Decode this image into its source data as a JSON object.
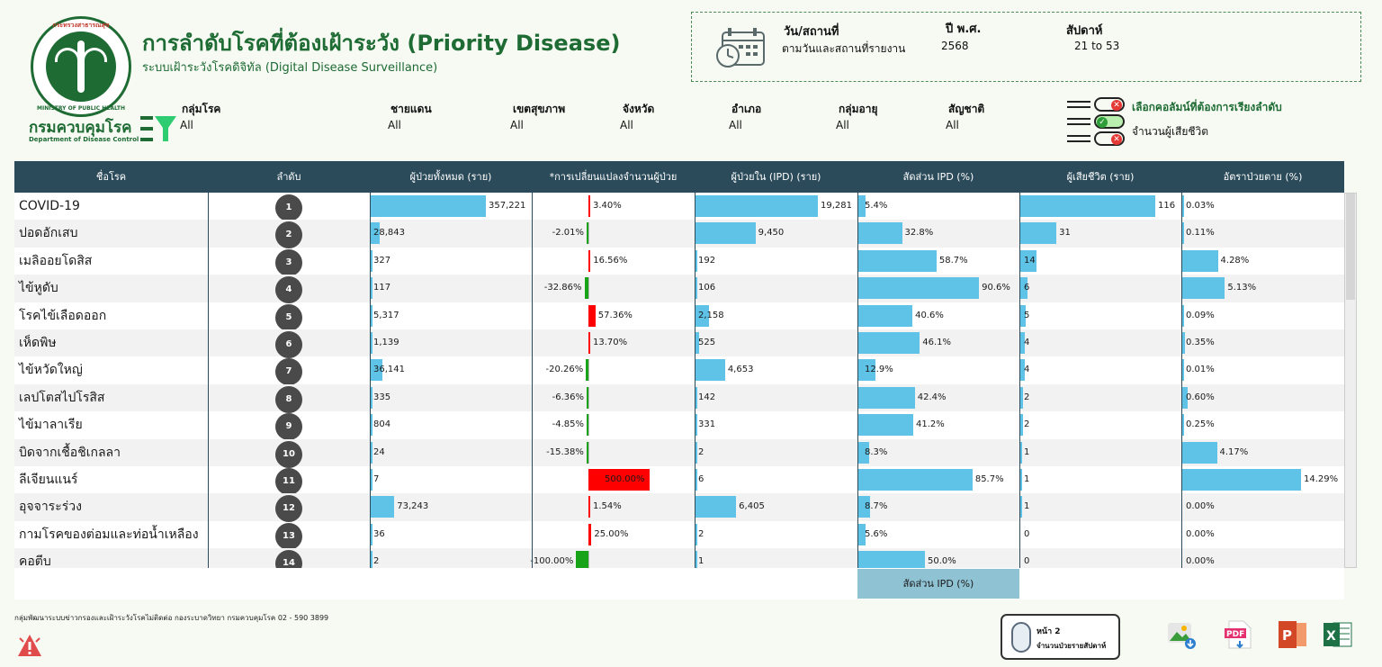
{
  "header": {
    "title": "การลำดับโรคที่ต้องเฝ้าระวัง (Priority Disease)",
    "subtitle": "ระบบเฝ้าระวังโรคดิจิทัล (Digital Disease Surveillance)",
    "dept_name": "กรมควบคุมโรค",
    "dept_en": "Department of Disease Control",
    "logo_top_text": "กระทรวงสาธารณสุข",
    "logo_bottom_text": "MINISTRY OF PUBLIC HEALTH"
  },
  "info": {
    "date_label": "วัน/สถานที่",
    "date_value": "ตามวันและสถานที่รายงาน",
    "year_label": "ปี พ.ศ.",
    "year_value": "2568",
    "week_label": "สัปดาห์",
    "week_value": "21 to 53"
  },
  "filters": [
    {
      "label": "กลุ่มโรค",
      "value": "All"
    },
    {
      "label": "ชายแดน",
      "value": "All"
    },
    {
      "label": "เขตสุขภาพ",
      "value": "All"
    },
    {
      "label": "จังหวัด",
      "value": "All"
    },
    {
      "label": "อำเภอ",
      "value": "All"
    },
    {
      "label": "กลุ่มอายุ",
      "value": "All"
    },
    {
      "label": "สัญชาติ",
      "value": "All"
    }
  ],
  "sort_selector": {
    "title": "เลือกคอลัมน์ที่ต้องการเรียงลำดับ",
    "value": "จำนวนผู้เสียชีวิต"
  },
  "table": {
    "headers": [
      "ชื่อโรค",
      "ลำดับ",
      "ผู้ป่วยทั้งหมด (ราย)",
      "*การเปลี่ยนแปลงจำนวนผู้ป่วย",
      "ผู้ป่วยใน (IPD) (ราย)",
      "สัดส่วน IPD (%)",
      "ผู้เสียชีวิต (ราย)",
      "อัตราป่วยตาย (%)"
    ],
    "rows": [
      {
        "name": "COVID-19",
        "rank": "1",
        "total": "357,221",
        "total_v": 357221,
        "change": "3.40%",
        "change_v": 3.4,
        "ipd": "19,281",
        "ipd_v": 19281,
        "ipd_pct": "5.4%",
        "ipd_pct_v": 5.4,
        "deaths": "116",
        "deaths_v": 116,
        "cfr": "0.03%",
        "cfr_v": 0.03
      },
      {
        "name": "ปอดอักเสบ",
        "rank": "2",
        "total": "28,843",
        "total_v": 28843,
        "change": "-2.01%",
        "change_v": -2.01,
        "ipd": "9,450",
        "ipd_v": 9450,
        "ipd_pct": "32.8%",
        "ipd_pct_v": 32.8,
        "deaths": "31",
        "deaths_v": 31,
        "cfr": "0.11%",
        "cfr_v": 0.11
      },
      {
        "name": "เมลิออยโดสิส",
        "rank": "3",
        "total": "327",
        "total_v": 327,
        "change": "16.56%",
        "change_v": 16.56,
        "ipd": "192",
        "ipd_v": 192,
        "ipd_pct": "58.7%",
        "ipd_pct_v": 58.7,
        "deaths": "14",
        "deaths_v": 14,
        "cfr": "4.28%",
        "cfr_v": 4.28
      },
      {
        "name": "ไข้หูดับ",
        "rank": "4",
        "total": "117",
        "total_v": 117,
        "change": "-32.86%",
        "change_v": -32.86,
        "ipd": "106",
        "ipd_v": 106,
        "ipd_pct": "90.6%",
        "ipd_pct_v": 90.6,
        "deaths": "6",
        "deaths_v": 6,
        "cfr": "5.13%",
        "cfr_v": 5.13
      },
      {
        "name": "โรคไข้เลือดออก",
        "rank": "5",
        "total": "5,317",
        "total_v": 5317,
        "change": "57.36%",
        "change_v": 57.36,
        "ipd": "2,158",
        "ipd_v": 2158,
        "ipd_pct": "40.6%",
        "ipd_pct_v": 40.6,
        "deaths": "5",
        "deaths_v": 5,
        "cfr": "0.09%",
        "cfr_v": 0.09
      },
      {
        "name": "เห็ดพิษ",
        "rank": "6",
        "total": "1,139",
        "total_v": 1139,
        "change": "13.70%",
        "change_v": 13.7,
        "ipd": "525",
        "ipd_v": 525,
        "ipd_pct": "46.1%",
        "ipd_pct_v": 46.1,
        "deaths": "4",
        "deaths_v": 4,
        "cfr": "0.35%",
        "cfr_v": 0.35
      },
      {
        "name": "ไข้หวัดใหญ่",
        "rank": "7",
        "total": "36,141",
        "total_v": 36141,
        "change": "-20.26%",
        "change_v": -20.26,
        "ipd": "4,653",
        "ipd_v": 4653,
        "ipd_pct": "12.9%",
        "ipd_pct_v": 12.9,
        "deaths": "4",
        "deaths_v": 4,
        "cfr": "0.01%",
        "cfr_v": 0.01
      },
      {
        "name": "เลปโตสไปโรสิส",
        "rank": "8",
        "total": "335",
        "total_v": 335,
        "change": "-6.36%",
        "change_v": -6.36,
        "ipd": "142",
        "ipd_v": 142,
        "ipd_pct": "42.4%",
        "ipd_pct_v": 42.4,
        "deaths": "2",
        "deaths_v": 2,
        "cfr": "0.60%",
        "cfr_v": 0.6
      },
      {
        "name": "ไข้มาลาเรีย",
        "rank": "9",
        "total": "804",
        "total_v": 804,
        "change": "-4.85%",
        "change_v": -4.85,
        "ipd": "331",
        "ipd_v": 331,
        "ipd_pct": "41.2%",
        "ipd_pct_v": 41.2,
        "deaths": "2",
        "deaths_v": 2,
        "cfr": "0.25%",
        "cfr_v": 0.25
      },
      {
        "name": "บิดจากเชื้อชิเกลลา",
        "rank": "10",
        "total": "24",
        "total_v": 24,
        "change": "-15.38%",
        "change_v": -15.38,
        "ipd": "2",
        "ipd_v": 2,
        "ipd_pct": "8.3%",
        "ipd_pct_v": 8.3,
        "deaths": "1",
        "deaths_v": 1,
        "cfr": "4.17%",
        "cfr_v": 4.17
      },
      {
        "name": "ลีเจียนแนร์",
        "rank": "11",
        "total": "7",
        "total_v": 7,
        "change": "500.00%",
        "change_v": 500.0,
        "ipd": "6",
        "ipd_v": 6,
        "ipd_pct": "85.7%",
        "ipd_pct_v": 85.7,
        "deaths": "1",
        "deaths_v": 1,
        "cfr": "14.29%",
        "cfr_v": 14.29
      },
      {
        "name": "อุจจาระร่วง",
        "rank": "12",
        "total": "73,243",
        "total_v": 73243,
        "change": "1.54%",
        "change_v": 1.54,
        "ipd": "6,405",
        "ipd_v": 6405,
        "ipd_pct": "8.7%",
        "ipd_pct_v": 8.7,
        "deaths": "1",
        "deaths_v": 1,
        "cfr": "0.00%",
        "cfr_v": 0.0
      },
      {
        "name": "กามโรคของต่อมและท่อน้ำเหลือง",
        "rank": "13",
        "total": "36",
        "total_v": 36,
        "change": "25.00%",
        "change_v": 25.0,
        "ipd": "2",
        "ipd_v": 2,
        "ipd_pct": "5.6%",
        "ipd_pct_v": 5.6,
        "deaths": "0",
        "deaths_v": 0,
        "cfr": "0.00%",
        "cfr_v": 0.0
      },
      {
        "name": "คอตีบ",
        "rank": "14",
        "total": "2",
        "total_v": 2,
        "change": "-100.00%",
        "change_v": -100.0,
        "ipd": "1",
        "ipd_v": 1,
        "ipd_pct": "50.0%",
        "ipd_pct_v": 50.0,
        "deaths": "0",
        "deaths_v": 0,
        "cfr": "0.00%",
        "cfr_v": 0.0
      }
    ],
    "footer_label": "สัดส่วน IPD (%)"
  },
  "colors": {
    "header_bg": "#2b4b5a",
    "bar": "#5ec3e6",
    "increase": "#ff0000",
    "decrease": "#19a319",
    "brand_green": "#1e6b34"
  },
  "footer": {
    "contact": "กลุ่มพัฒนาระบบข่าวกรองและเฝ้าระวังโรคไม่ติดต่อ กองระบาดวิทยา กรมควบคุมโรค 02 - 590 3899",
    "page2_line1": "หน้า 2",
    "page2_line2": "จำนวนป่วยรายสัปดาห์"
  },
  "export_icons": [
    "image-export-icon",
    "pdf-export-icon",
    "powerpoint-export-icon",
    "excel-export-icon"
  ]
}
